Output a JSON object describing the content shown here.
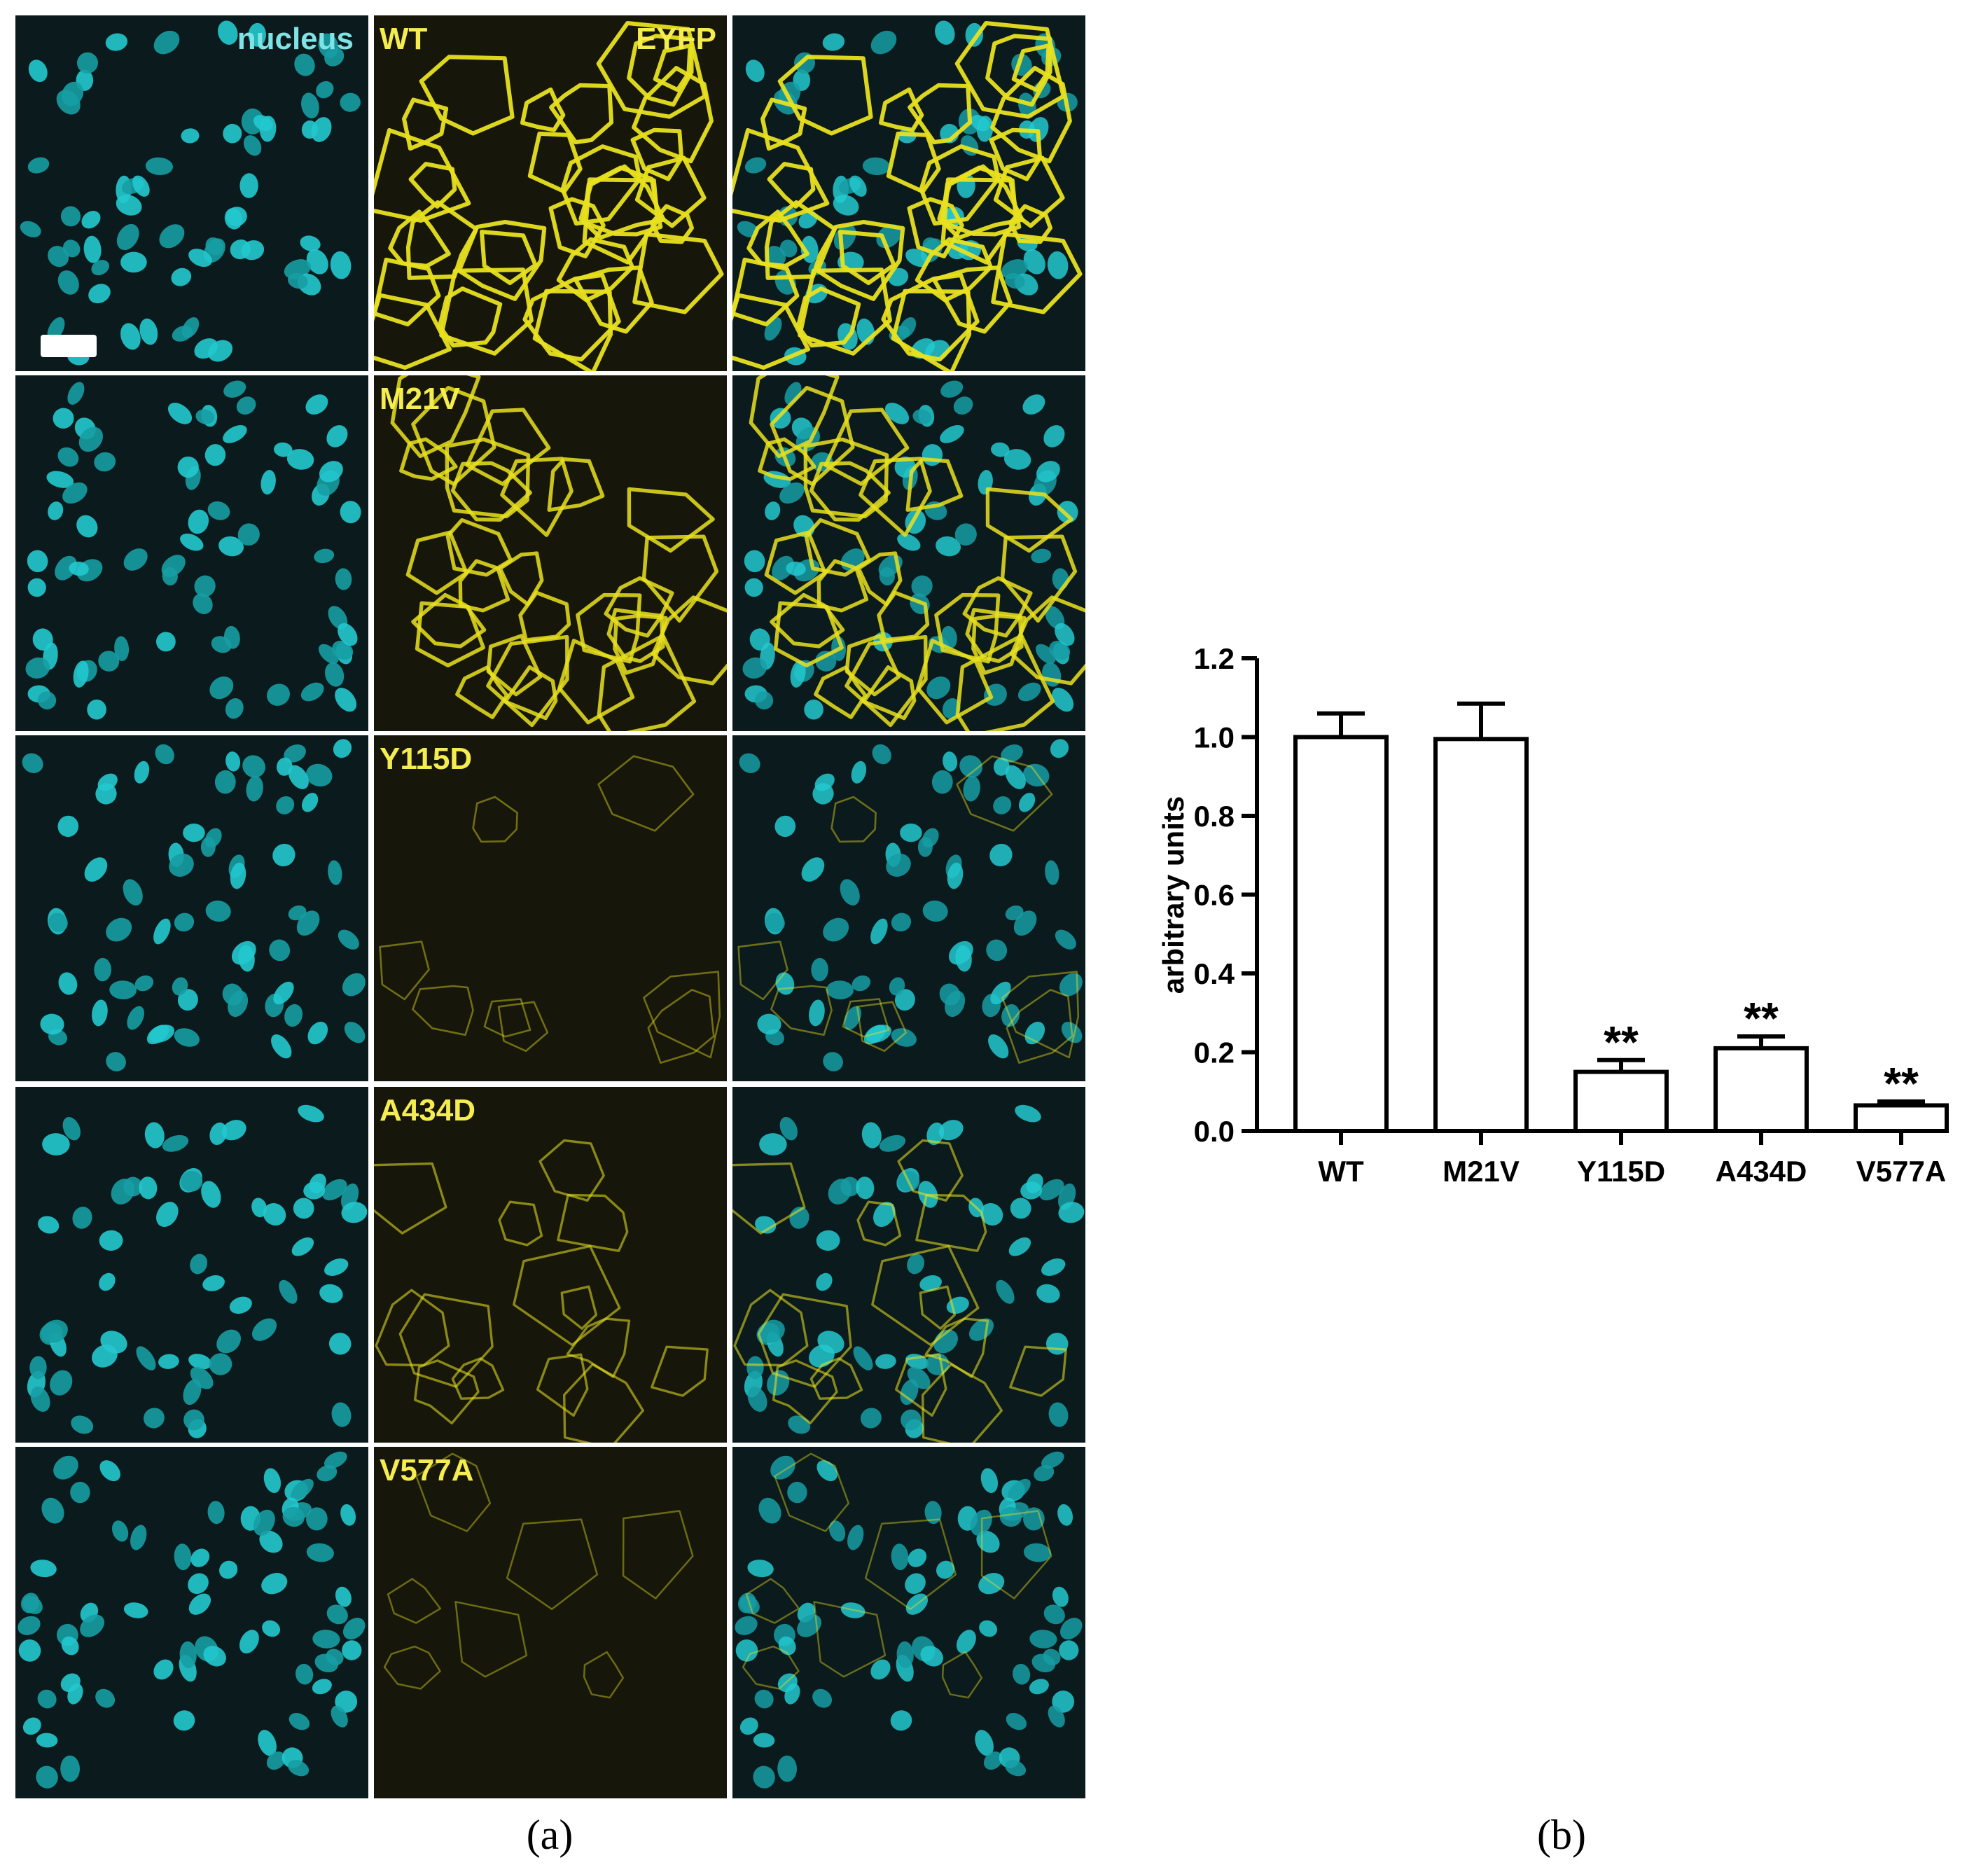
{
  "panel_a": {
    "caption": "(a)",
    "column_labels": {
      "nucleus": "nucleus",
      "eyfp": "EYFP"
    },
    "rows": [
      {
        "label": "WT",
        "brightness": 1.0
      },
      {
        "label": "M21V",
        "brightness": 0.85
      },
      {
        "label": "Y115D",
        "brightness": 0.15
      },
      {
        "label": "A434D",
        "brightness": 0.35
      },
      {
        "label": "V577A",
        "brightness": 0.12
      }
    ],
    "colors": {
      "nucleus": "#22c9cf",
      "eyfp": "#e8e020",
      "label_nucleus": "#7fe3e6",
      "label_eyfp": "#f5ec50"
    }
  },
  "panel_b": {
    "caption": "(b)",
    "chart_data": {
      "type": "bar",
      "categories": [
        "WT",
        "M21V",
        "Y115D",
        "A434D",
        "V577A"
      ],
      "values": [
        1.0,
        0.995,
        0.15,
        0.21,
        0.065
      ],
      "errors": [
        0.06,
        0.09,
        0.03,
        0.03,
        0.01
      ],
      "significance": [
        "",
        "",
        "**",
        "**",
        "**"
      ],
      "ylabel": "arbitrary units",
      "xlabel": "",
      "title": "",
      "ylim": [
        0,
        1.2
      ],
      "yticks": [
        "0.0",
        "0.2",
        "0.4",
        "0.6",
        "0.8",
        "1.0",
        "1.2"
      ],
      "grid": false,
      "legend": "none"
    }
  }
}
